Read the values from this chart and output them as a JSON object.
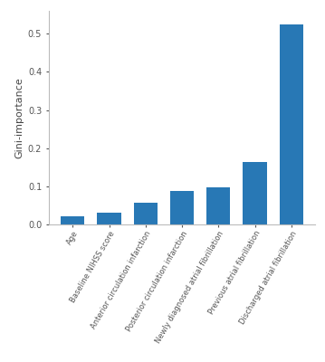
{
  "categories": [
    "Age",
    "Baseline NIHSS score",
    "Anterior circulation infarction",
    "Posterior circulation infarction",
    "Newly diagnosed atrial fibrillation",
    "Previous atrial fibrillation",
    "Discharged atrial fibrillation"
  ],
  "values": [
    0.022,
    0.032,
    0.058,
    0.088,
    0.097,
    0.163,
    0.525
  ],
  "bar_color": "#2878b5",
  "ylabel": "Gini-importance",
  "ylim": [
    0.0,
    0.56
  ],
  "yticks": [
    0.0,
    0.1,
    0.2,
    0.3,
    0.4,
    0.5
  ],
  "background_color": "#ffffff",
  "bar_width": 0.65
}
